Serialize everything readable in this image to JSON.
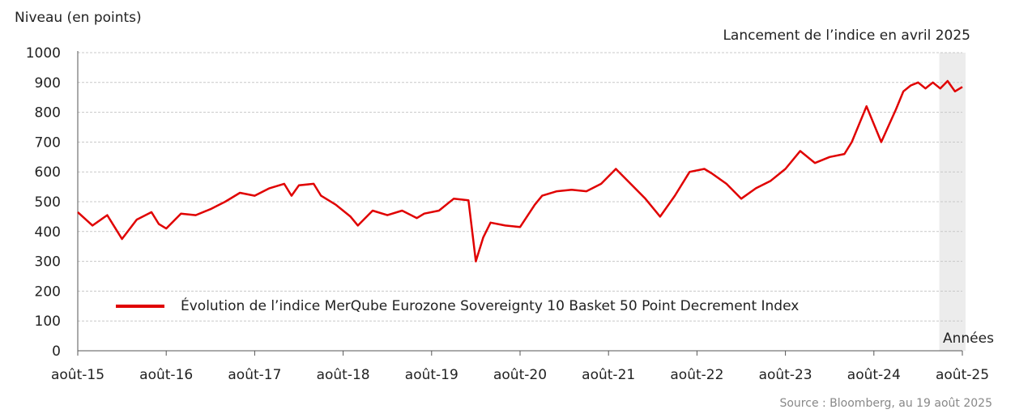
{
  "chart_data": {
    "type": "line",
    "ylabel": "Niveau (en points)",
    "xlabel": "Années",
    "ylim": [
      0,
      1000
    ],
    "yticks": [
      0,
      100,
      200,
      300,
      400,
      500,
      600,
      700,
      800,
      900,
      1000
    ],
    "x_ticks": [
      "août-15",
      "août-16",
      "août-17",
      "août-18",
      "août-19",
      "août-20",
      "août-21",
      "août-22",
      "août-23",
      "août-24",
      "août-25"
    ],
    "grid": true,
    "legend_position": "lower-left",
    "shaded_region_label": "Lancement de l’indice en avril 2025",
    "shaded_region": {
      "from": "2025-04",
      "to": "2025-08"
    },
    "source": "Source : Bloomberg, au 19 août 2025",
    "series": [
      {
        "name": "Évolution de l’indice MerQube Eurozone Sovereignty 10 Basket 50 Point Decrement Index",
        "color": "#e00000",
        "x": [
          "2015-08",
          "2015-10",
          "2015-12",
          "2016-01",
          "2016-02",
          "2016-04",
          "2016-06",
          "2016-07",
          "2016-08",
          "2016-10",
          "2016-12",
          "2017-02",
          "2017-04",
          "2017-06",
          "2017-08",
          "2017-10",
          "2017-12",
          "2018-01",
          "2018-02",
          "2018-04",
          "2018-05",
          "2018-07",
          "2018-09",
          "2018-10",
          "2018-12",
          "2019-02",
          "2019-04",
          "2019-06",
          "2019-07",
          "2019-09",
          "2019-11",
          "2020-01",
          "2020-02",
          "2020-03",
          "2020-04",
          "2020-06",
          "2020-08",
          "2020-10",
          "2020-11",
          "2021-01",
          "2021-03",
          "2021-05",
          "2021-07",
          "2021-09",
          "2021-11",
          "2022-01",
          "2022-03",
          "2022-05",
          "2022-07",
          "2022-09",
          "2022-10",
          "2022-12",
          "2023-02",
          "2023-04",
          "2023-06",
          "2023-08",
          "2023-10",
          "2023-12",
          "2024-02",
          "2024-04",
          "2024-05",
          "2024-07",
          "2024-09",
          "2024-11",
          "2024-12",
          "2025-01",
          "2025-02",
          "2025-03",
          "2025-04",
          "2025-05",
          "2025-06",
          "2025-07",
          "2025-08"
        ],
        "values": [
          465,
          420,
          455,
          415,
          375,
          440,
          465,
          425,
          410,
          460,
          455,
          475,
          500,
          530,
          520,
          545,
          560,
          520,
          555,
          560,
          520,
          490,
          450,
          420,
          470,
          455,
          470,
          445,
          460,
          470,
          510,
          505,
          300,
          380,
          430,
          420,
          415,
          490,
          520,
          535,
          540,
          535,
          560,
          610,
          560,
          510,
          450,
          520,
          600,
          610,
          595,
          560,
          510,
          545,
          570,
          610,
          670,
          630,
          650,
          660,
          700,
          820,
          700,
          810,
          870,
          890,
          900,
          880,
          900,
          880,
          905,
          870,
          885
        ]
      }
    ]
  }
}
